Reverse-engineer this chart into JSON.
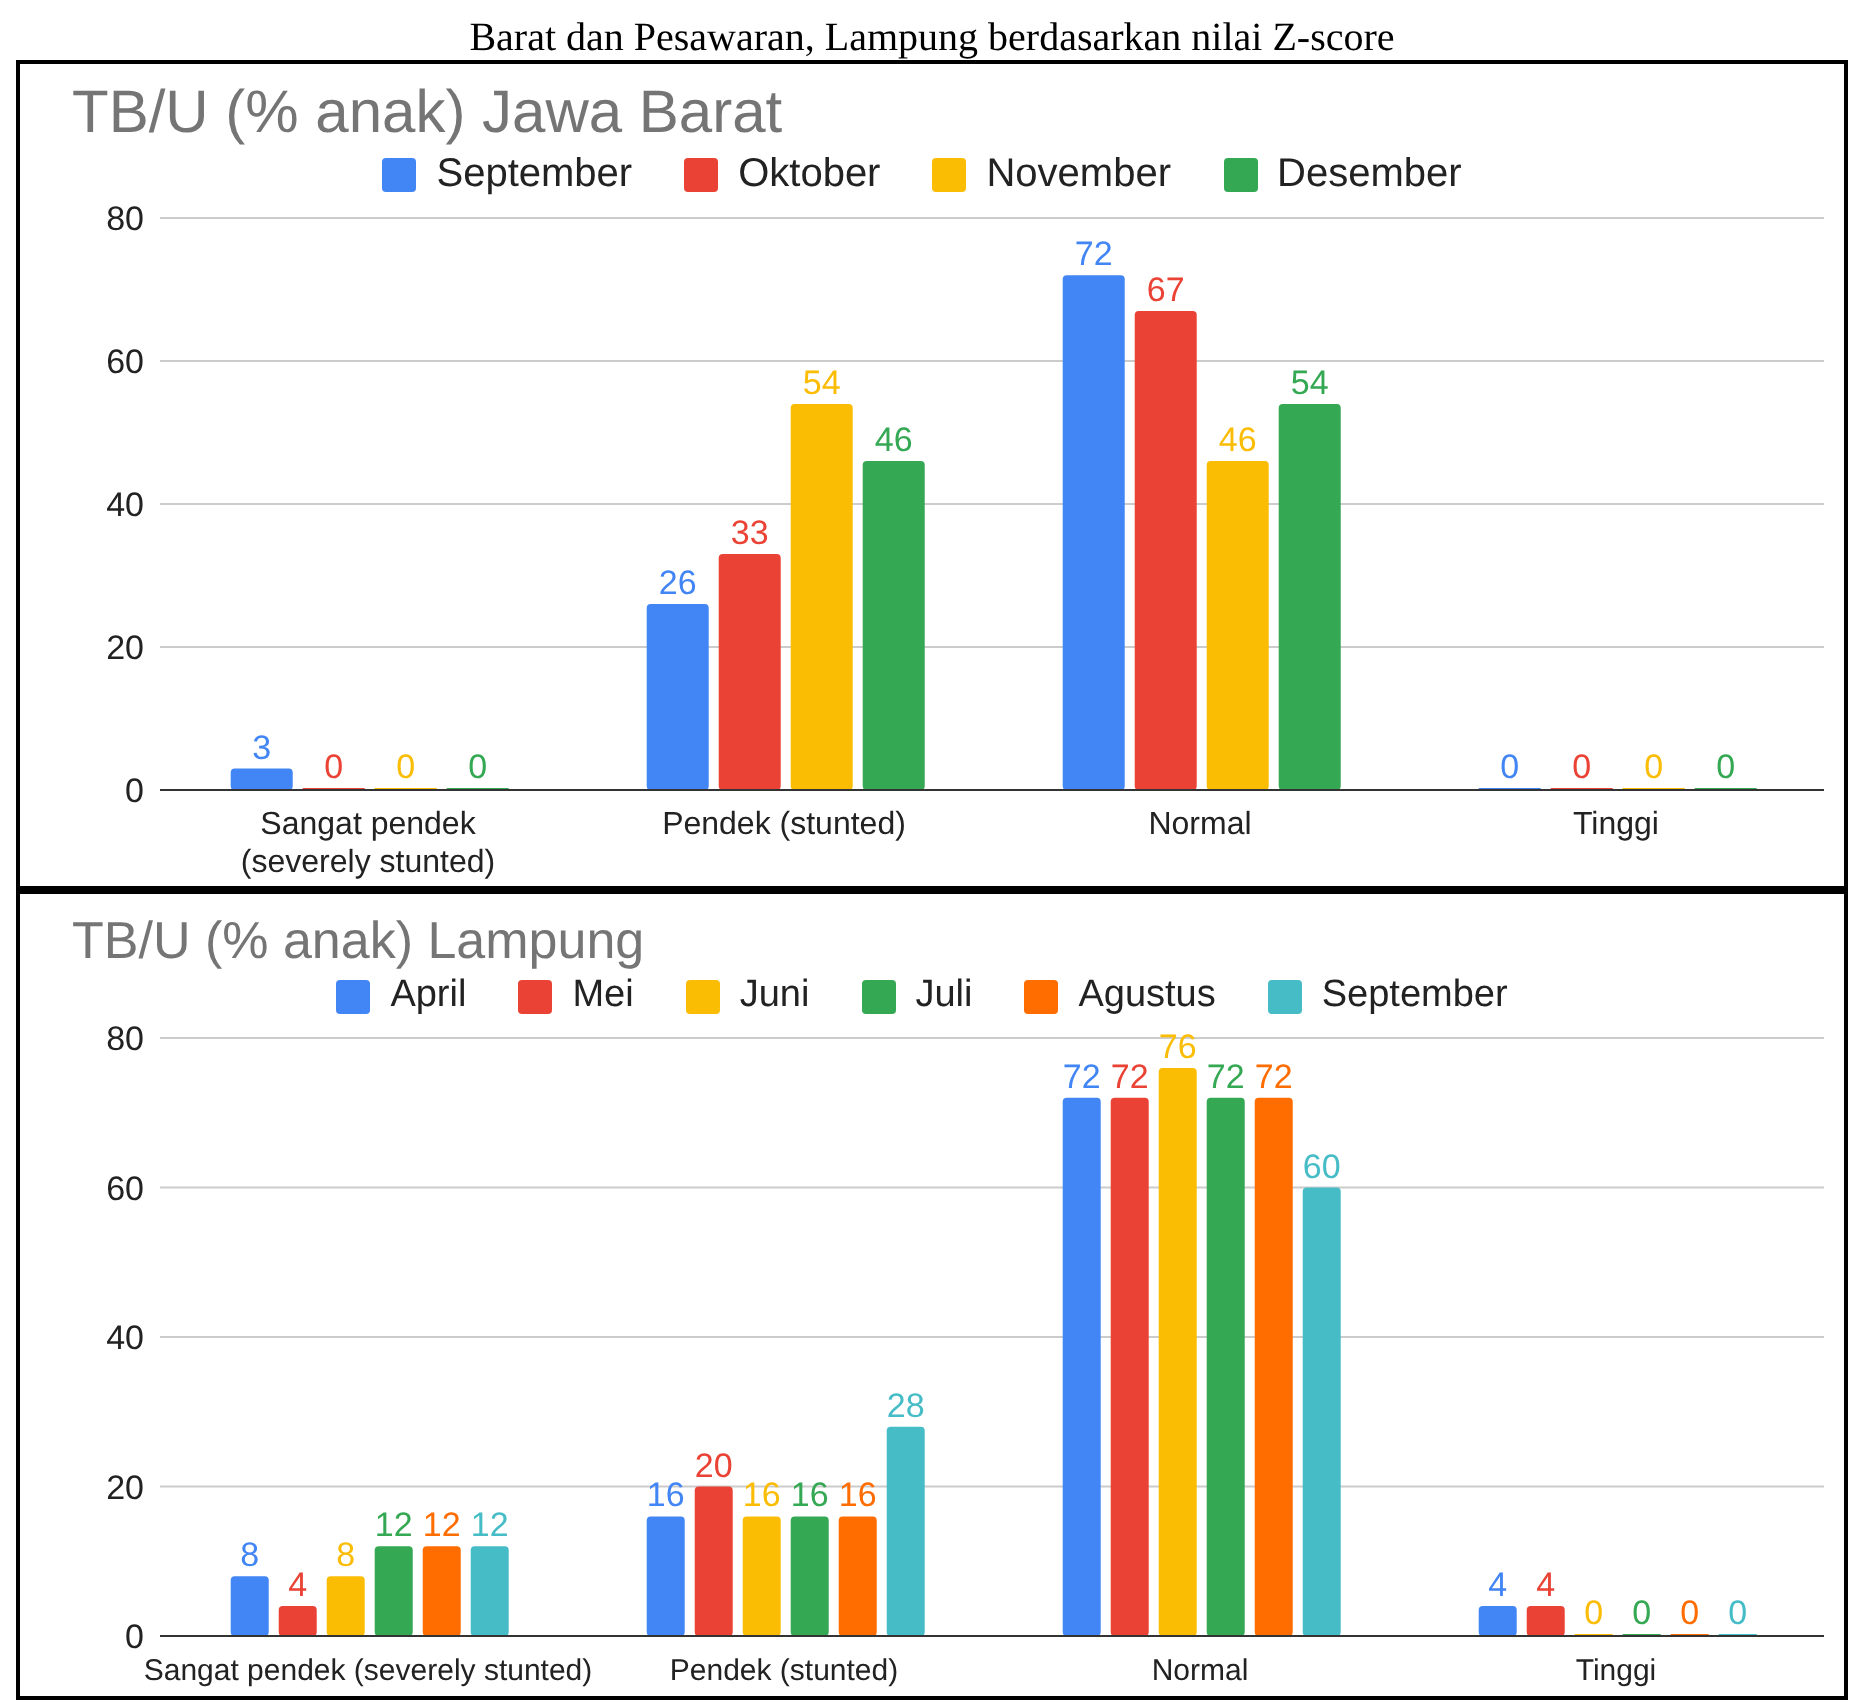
{
  "chart_data": [
    {
      "type": "bar",
      "title": "TB/U (% anak) Jawa Barat",
      "annotations": [
        "Barat dan Pesawaran, Lampung berdasarkan nilai Z-score"
      ],
      "categories": [
        "Sangat pendek (severely stunted)",
        "Pendek (stunted)",
        "Normal",
        "Tinggi"
      ],
      "series": [
        {
          "name": "September",
          "color": "#4285f4",
          "values": [
            3,
            26,
            72,
            0
          ]
        },
        {
          "name": "Oktober",
          "color": "#ea4335",
          "values": [
            0,
            33,
            67,
            0
          ]
        },
        {
          "name": "November",
          "color": "#fbbc04",
          "values": [
            0,
            54,
            46,
            0
          ]
        },
        {
          "name": "Desember",
          "color": "#34a853",
          "values": [
            0,
            46,
            54,
            0
          ]
        }
      ],
      "ylim": [
        0,
        80
      ],
      "yticks": [
        0,
        20,
        40,
        60,
        80
      ],
      "grid": "y",
      "legend": "top",
      "data_labels": true
    },
    {
      "type": "bar",
      "title": "TB/U (% anak) Lampung",
      "categories": [
        "Sangat pendek (severely stunted)",
        "Pendek (stunted)",
        "Normal",
        "Tinggi"
      ],
      "series": [
        {
          "name": "April",
          "color": "#4285f4",
          "values": [
            8,
            16,
            72,
            4
          ]
        },
        {
          "name": "Mei",
          "color": "#ea4335",
          "values": [
            4,
            20,
            72,
            4
          ]
        },
        {
          "name": "Juni",
          "color": "#fbbc04",
          "values": [
            8,
            16,
            76,
            0
          ]
        },
        {
          "name": "Juli",
          "color": "#34a853",
          "values": [
            12,
            16,
            72,
            0
          ]
        },
        {
          "name": "Agustus",
          "color": "#ff6d01",
          "values": [
            12,
            16,
            72,
            0
          ]
        },
        {
          "name": "September",
          "color": "#46bdc6",
          "values": [
            12,
            28,
            60,
            0
          ]
        }
      ],
      "ylim": [
        0,
        80
      ],
      "yticks": [
        0,
        20,
        40,
        60,
        80
      ],
      "grid": "y",
      "legend": "top",
      "data_labels": true
    }
  ]
}
